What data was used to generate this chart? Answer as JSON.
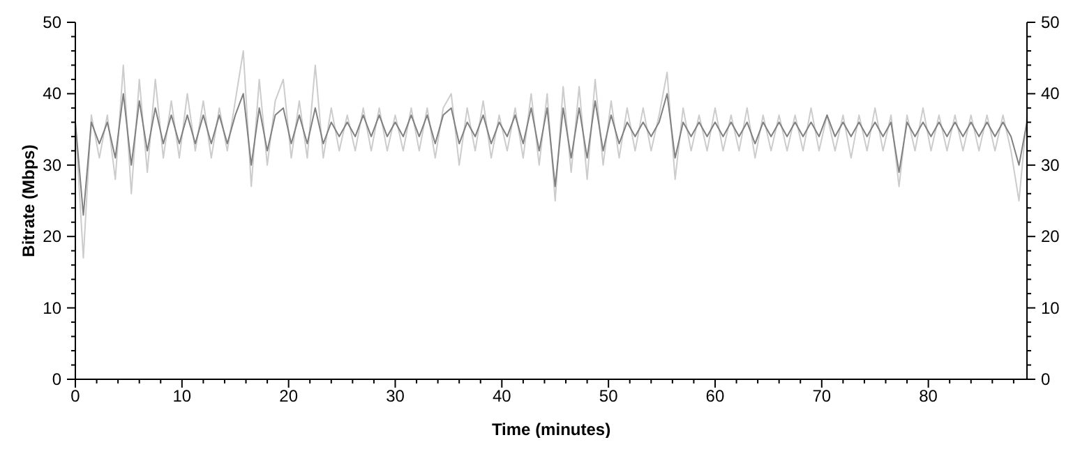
{
  "chart_data": {
    "type": "line",
    "xlabel": "Time (minutes)",
    "ylabel": "Bitrate (Mbps)",
    "x": [
      0,
      0.75,
      1.5,
      2.25,
      3,
      3.75,
      4.5,
      5.25,
      6,
      6.75,
      7.5,
      8.25,
      9,
      9.75,
      10.5,
      11.25,
      12,
      12.75,
      13.5,
      14.25,
      15,
      15.75,
      16.5,
      17.25,
      18,
      18.75,
      19.5,
      20.25,
      21,
      21.75,
      22.5,
      23.25,
      24,
      24.75,
      25.5,
      26.25,
      27,
      27.75,
      28.5,
      29.25,
      30,
      30.75,
      31.5,
      32.25,
      33,
      33.75,
      34.5,
      35.25,
      36,
      36.75,
      37.5,
      38.25,
      39,
      39.75,
      40.5,
      41.25,
      42,
      42.75,
      43.5,
      44.25,
      45,
      45.75,
      46.5,
      47.25,
      48,
      48.75,
      49.5,
      50.25,
      51,
      51.75,
      52.5,
      53.25,
      54,
      54.75,
      55.5,
      56.25,
      57,
      57.75,
      58.5,
      59.25,
      60,
      60.75,
      61.5,
      62.25,
      63,
      63.75,
      64.5,
      65.25,
      66,
      66.75,
      67.5,
      68.25,
      69,
      69.75,
      70.5,
      71.25,
      72,
      72.75,
      73.5,
      74.25,
      75,
      75.75,
      76.5,
      77.25,
      78,
      78.75,
      79.5,
      80.25,
      81,
      81.75,
      82.5,
      83.25,
      84,
      84.75,
      85.5,
      86.25,
      87,
      87.75,
      88.5,
      89.25
    ],
    "series": [
      {
        "color": "#cccccc",
        "values": [
          36,
          17,
          37,
          31,
          37,
          28,
          44,
          26,
          42,
          29,
          42,
          31,
          39,
          31,
          40,
          32,
          39,
          31,
          38,
          32,
          39,
          46,
          27,
          42,
          30,
          39,
          42,
          31,
          39,
          31,
          44,
          31,
          38,
          32,
          37,
          32,
          38,
          32,
          38,
          32,
          37,
          32,
          38,
          32,
          38,
          31,
          38,
          40,
          30,
          38,
          32,
          39,
          31,
          37,
          32,
          38,
          31,
          40,
          30,
          40,
          25,
          41,
          29,
          41,
          28,
          42,
          30,
          39,
          31,
          38,
          32,
          38,
          32,
          37,
          43,
          28,
          38,
          32,
          37,
          32,
          38,
          32,
          37,
          32,
          38,
          31,
          37,
          32,
          37,
          32,
          37,
          32,
          38,
          32,
          37,
          32,
          37,
          31,
          37,
          32,
          38,
          32,
          37,
          27,
          37,
          32,
          38,
          32,
          37,
          32,
          37,
          32,
          37,
          32,
          37,
          32,
          37,
          32,
          25,
          37
        ]
      },
      {
        "color": "#808080",
        "values": [
          36,
          23,
          36,
          33,
          36,
          31,
          40,
          30,
          39,
          32,
          38,
          33,
          37,
          33,
          37,
          33,
          37,
          33,
          37,
          33,
          37,
          40,
          30,
          38,
          32,
          37,
          38,
          33,
          37,
          33,
          38,
          33,
          36,
          34,
          36,
          34,
          37,
          34,
          37,
          34,
          36,
          34,
          37,
          34,
          37,
          33,
          37,
          38,
          33,
          36,
          34,
          37,
          33,
          36,
          34,
          37,
          33,
          38,
          32,
          38,
          27,
          38,
          31,
          38,
          31,
          39,
          32,
          37,
          33,
          36,
          34,
          36,
          34,
          36,
          40,
          31,
          36,
          34,
          36,
          34,
          36,
          34,
          36,
          34,
          36,
          33,
          36,
          34,
          36,
          34,
          36,
          34,
          36,
          34,
          37,
          34,
          36,
          34,
          36,
          34,
          36,
          34,
          36,
          29,
          36,
          34,
          36,
          34,
          36,
          34,
          36,
          34,
          36,
          34,
          36,
          34,
          36,
          34,
          30,
          36
        ]
      }
    ],
    "xlim": [
      0,
      89.25
    ],
    "xticks": [
      0,
      {
        "value": 2,
        "label": null
      },
      {
        "value": 4,
        "label": null
      },
      {
        "value": 6,
        "label": null
      },
      {
        "value": 8,
        "label": null
      },
      10,
      {
        "value": 12,
        "label": null
      },
      {
        "value": 14,
        "label": null
      },
      {
        "value": 16,
        "label": null
      },
      {
        "value": 18,
        "label": null
      },
      20,
      {
        "value": 22,
        "label": null
      },
      {
        "value": 24,
        "label": null
      },
      {
        "value": 26,
        "label": null
      },
      {
        "value": 28,
        "label": null
      },
      30,
      {
        "value": 32,
        "label": null
      },
      {
        "value": 34,
        "label": null
      },
      {
        "value": 36,
        "label": null
      },
      {
        "value": 38,
        "label": null
      },
      40,
      {
        "value": 42,
        "label": null
      },
      {
        "value": 44,
        "label": null
      },
      {
        "value": 46,
        "label": null
      },
      {
        "value": 48,
        "label": null
      },
      50,
      {
        "value": 52,
        "label": null
      },
      {
        "value": 54,
        "label": null
      },
      {
        "value": 56,
        "label": null
      },
      {
        "value": 58,
        "label": null
      },
      60,
      {
        "value": 62,
        "label": null
      },
      {
        "value": 64,
        "label": null
      },
      {
        "value": 66,
        "label": null
      },
      {
        "value": 68,
        "label": null
      },
      70,
      {
        "value": 72,
        "label": null
      },
      {
        "value": 74,
        "label": null
      },
      {
        "value": 76,
        "label": null
      },
      {
        "value": 78,
        "label": null
      },
      80,
      {
        "value": 82,
        "label": null
      },
      {
        "value": 84,
        "label": null
      },
      {
        "value": 86,
        "label": null
      },
      {
        "value": 88,
        "label": null
      }
    ],
    "ylim": [
      0,
      50
    ],
    "yticks": [
      0,
      {
        "value": 2,
        "label": null
      },
      {
        "value": 4,
        "label": null
      },
      {
        "value": 6,
        "label": null
      },
      {
        "value": 8,
        "label": null
      },
      10,
      {
        "value": 12,
        "label": null
      },
      {
        "value": 14,
        "label": null
      },
      {
        "value": 16,
        "label": null
      },
      {
        "value": 18,
        "label": null
      },
      20,
      {
        "value": 22,
        "label": null
      },
      {
        "value": 24,
        "label": null
      },
      {
        "value": 26,
        "label": null
      },
      {
        "value": 28,
        "label": null
      },
      30,
      {
        "value": 32,
        "label": null
      },
      {
        "value": 34,
        "label": null
      },
      {
        "value": 36,
        "label": null
      },
      {
        "value": 38,
        "label": null
      },
      40,
      {
        "value": 42,
        "label": null
      },
      {
        "value": 44,
        "label": null
      },
      {
        "value": 46,
        "label": null
      },
      {
        "value": 48,
        "label": null
      },
      50
    ],
    "y2lim": [
      0,
      50
    ],
    "y2ticks": [
      0,
      {
        "value": 2,
        "label": null
      },
      {
        "value": 4,
        "label": null
      },
      {
        "value": 6,
        "label": null
      },
      {
        "value": 8,
        "label": null
      },
      10,
      {
        "value": 12,
        "label": null
      },
      {
        "value": 14,
        "label": null
      },
      {
        "value": 16,
        "label": null
      },
      {
        "value": 18,
        "label": null
      },
      20,
      {
        "value": 22,
        "label": null
      },
      {
        "value": 24,
        "label": null
      },
      {
        "value": 26,
        "label": null
      },
      {
        "value": 28,
        "label": null
      },
      30,
      {
        "value": 32,
        "label": null
      },
      {
        "value": 34,
        "label": null
      },
      {
        "value": 36,
        "label": null
      },
      {
        "value": 38,
        "label": null
      },
      40,
      {
        "value": 42,
        "label": null
      },
      {
        "value": 44,
        "label": null
      },
      {
        "value": 46,
        "label": null
      },
      {
        "value": 48,
        "label": null
      },
      50
    ],
    "grid": false,
    "legend": false,
    "marker": "none",
    "line_style": "solid"
  }
}
